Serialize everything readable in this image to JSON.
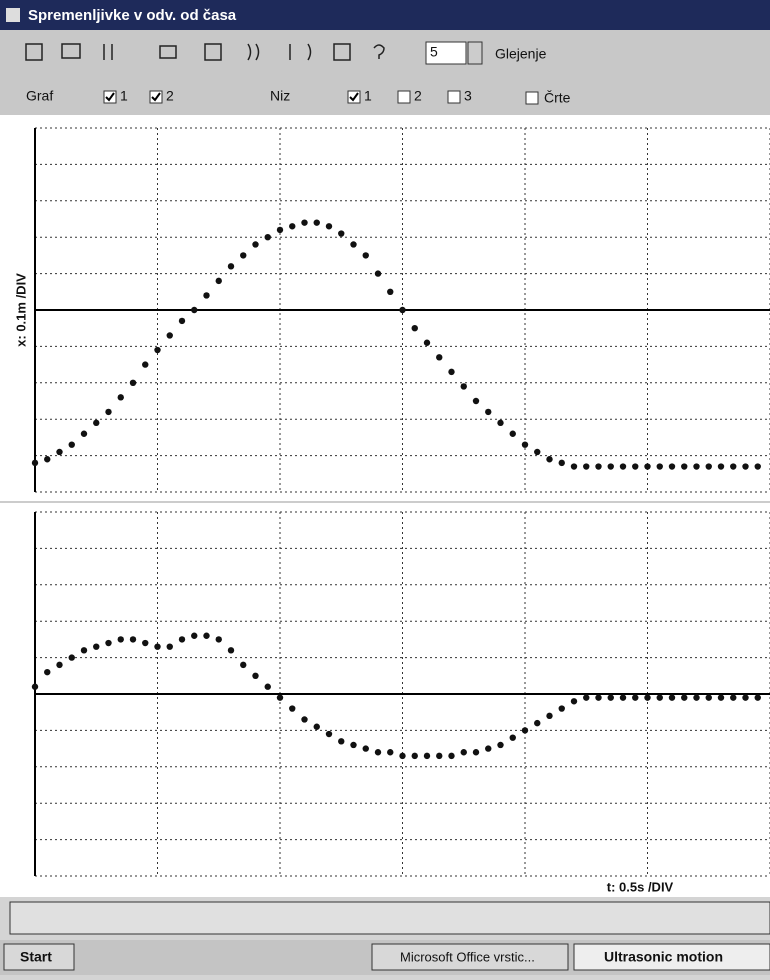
{
  "window": {
    "title": "Spremenljivke v odv. od časa"
  },
  "toolbar": {
    "spin_value": "5",
    "view_label": "Glejenje"
  },
  "options": {
    "graph_label": "Graf",
    "graph_items": [
      "1",
      "2"
    ],
    "series_label": "Niz",
    "series_items": [
      "1",
      "2",
      "3"
    ],
    "lines_label": "Črte"
  },
  "chart_data": [
    {
      "type": "scatter",
      "ylabel": "x: 0.1m /DIV",
      "color": "#111111",
      "grid": true,
      "xlim": [
        0,
        3.0
      ],
      "ylim": [
        -0.5,
        0.5
      ],
      "xticks": [
        0,
        0.5,
        1.0,
        1.5,
        2.0,
        2.5,
        3.0
      ],
      "yticks": [
        -0.5,
        -0.4,
        -0.3,
        -0.2,
        -0.1,
        0,
        0.1,
        0.2,
        0.3,
        0.4,
        0.5
      ],
      "x": [
        0,
        0.05,
        0.1,
        0.15,
        0.2,
        0.25,
        0.3,
        0.35,
        0.4,
        0.45,
        0.5,
        0.55,
        0.6,
        0.65,
        0.7,
        0.75,
        0.8,
        0.85,
        0.9,
        0.95,
        1.0,
        1.05,
        1.1,
        1.15,
        1.2,
        1.25,
        1.3,
        1.35,
        1.4,
        1.45,
        1.5,
        1.55,
        1.6,
        1.65,
        1.7,
        1.75,
        1.8,
        1.85,
        1.9,
        1.95,
        2.0,
        2.05,
        2.1,
        2.15,
        2.2,
        2.25,
        2.3,
        2.35,
        2.4,
        2.45,
        2.5,
        2.55,
        2.6,
        2.65,
        2.7,
        2.75,
        2.8,
        2.85,
        2.9,
        2.95
      ],
      "values": [
        -0.42,
        -0.41,
        -0.39,
        -0.37,
        -0.34,
        -0.31,
        -0.28,
        -0.24,
        -0.2,
        -0.15,
        -0.11,
        -0.07,
        -0.03,
        0,
        0.04,
        0.08,
        0.12,
        0.15,
        0.18,
        0.2,
        0.22,
        0.23,
        0.24,
        0.24,
        0.23,
        0.21,
        0.18,
        0.15,
        0.1,
        0.05,
        0,
        -0.05,
        -0.09,
        -0.13,
        -0.17,
        -0.21,
        -0.25,
        -0.28,
        -0.31,
        -0.34,
        -0.37,
        -0.39,
        -0.41,
        -0.42,
        -0.43,
        -0.43,
        -0.43,
        -0.43,
        -0.43,
        -0.43,
        -0.43,
        -0.43,
        -0.43,
        -0.43,
        -0.43,
        -0.43,
        -0.43,
        -0.43,
        -0.43,
        -0.43
      ]
    },
    {
      "type": "scatter",
      "xlabel": "t: 0.5s /DIV",
      "color": "#111111",
      "grid": true,
      "xlim": [
        0,
        3.0
      ],
      "ylim": [
        -0.5,
        0.5
      ],
      "xticks": [
        0,
        0.5,
        1.0,
        1.5,
        2.0,
        2.5,
        3.0
      ],
      "yticks": [
        -0.5,
        -0.4,
        -0.3,
        -0.2,
        -0.1,
        0,
        0.1,
        0.2,
        0.3,
        0.4,
        0.5
      ],
      "x": [
        0,
        0.05,
        0.1,
        0.15,
        0.2,
        0.25,
        0.3,
        0.35,
        0.4,
        0.45,
        0.5,
        0.55,
        0.6,
        0.65,
        0.7,
        0.75,
        0.8,
        0.85,
        0.9,
        0.95,
        1.0,
        1.05,
        1.1,
        1.15,
        1.2,
        1.25,
        1.3,
        1.35,
        1.4,
        1.45,
        1.5,
        1.55,
        1.6,
        1.65,
        1.7,
        1.75,
        1.8,
        1.85,
        1.9,
        1.95,
        2.0,
        2.05,
        2.1,
        2.15,
        2.2,
        2.25,
        2.3,
        2.35,
        2.4,
        2.45,
        2.5,
        2.55,
        2.6,
        2.65,
        2.7,
        2.75,
        2.8,
        2.85,
        2.9,
        2.95
      ],
      "values": [
        0.02,
        0.06,
        0.08,
        0.1,
        0.12,
        0.13,
        0.14,
        0.15,
        0.15,
        0.14,
        0.13,
        0.13,
        0.15,
        0.16,
        0.16,
        0.15,
        0.12,
        0.08,
        0.05,
        0.02,
        -0.01,
        -0.04,
        -0.07,
        -0.09,
        -0.11,
        -0.13,
        -0.14,
        -0.15,
        -0.16,
        -0.16,
        -0.17,
        -0.17,
        -0.17,
        -0.17,
        -0.17,
        -0.16,
        -0.16,
        -0.15,
        -0.14,
        -0.12,
        -0.1,
        -0.08,
        -0.06,
        -0.04,
        -0.02,
        -0.01,
        -0.01,
        -0.01,
        -0.01,
        -0.01,
        -0.01,
        -0.01,
        -0.01,
        -0.01,
        -0.01,
        -0.01,
        -0.01,
        -0.01,
        -0.01,
        -0.01
      ]
    }
  ],
  "taskbar": {
    "start": "Start",
    "tasks": [
      "Microsoft Office vrstic...",
      "Ultrasonic motion"
    ]
  }
}
